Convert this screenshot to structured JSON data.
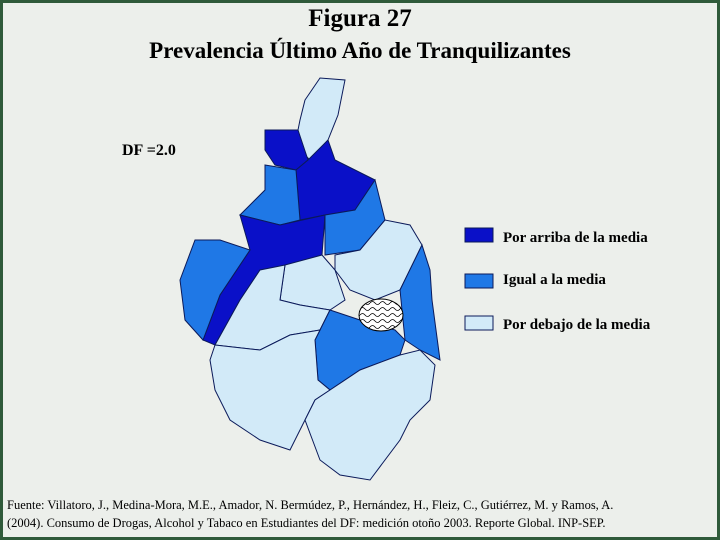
{
  "header": {
    "title_line1": "Figura 27",
    "title_line2": "Prevalencia Último Año de Tranquilizantes"
  },
  "annotation": "DF =2.0",
  "legend": {
    "items": [
      "Por arriba de la media",
      "Igual a la media",
      "Por debajo de la media"
    ]
  },
  "source": {
    "line1": "Fuente: Villatoro, J., Medina-Mora, M.E., Amador, N. Bermúdez, P., Hernández, H., Fleiz, C., Gutiérrez, M. y Ramos, A.",
    "line2": "(2004). Consumo de Drogas, Alcohol y Tabaco en Estudiantes del DF: medición otoño 2003. Reporte Global. INP-SEP."
  }
}
